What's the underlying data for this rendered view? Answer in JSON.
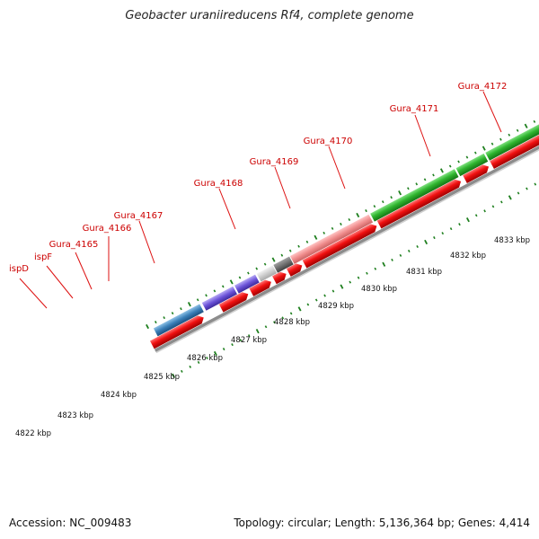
{
  "title": "Geobacter uraniireducens Rf4, complete genome",
  "footer": {
    "accession": "Accession: NC_009483",
    "summary": "Topology: circular; Length: 5,136,364 bp; Genes: 4,414"
  },
  "colors": {
    "forward_strand_gene": "#2ca02c",
    "reverse_strand_cds": "#e60000",
    "label": "#cc0000",
    "tick": "#1e7f1e",
    "backbone": "#8c8c8c"
  },
  "gene_labels": [
    "ispD",
    "ispF",
    "Gura_4165",
    "Gura_4166",
    "Gura_4167",
    "Gura_4168",
    "Gura_4169",
    "Gura_4170",
    "Gura_4171",
    "Gura_4172"
  ],
  "kbp_scale": [
    "4822 kbp",
    "4823 kbp",
    "4824 kbp",
    "4825 kbp",
    "4826 kbp",
    "4827 kbp",
    "4828 kbp",
    "4829 kbp",
    "4830 kbp",
    "4831 kbp",
    "4832 kbp",
    "4833 kbp"
  ]
}
